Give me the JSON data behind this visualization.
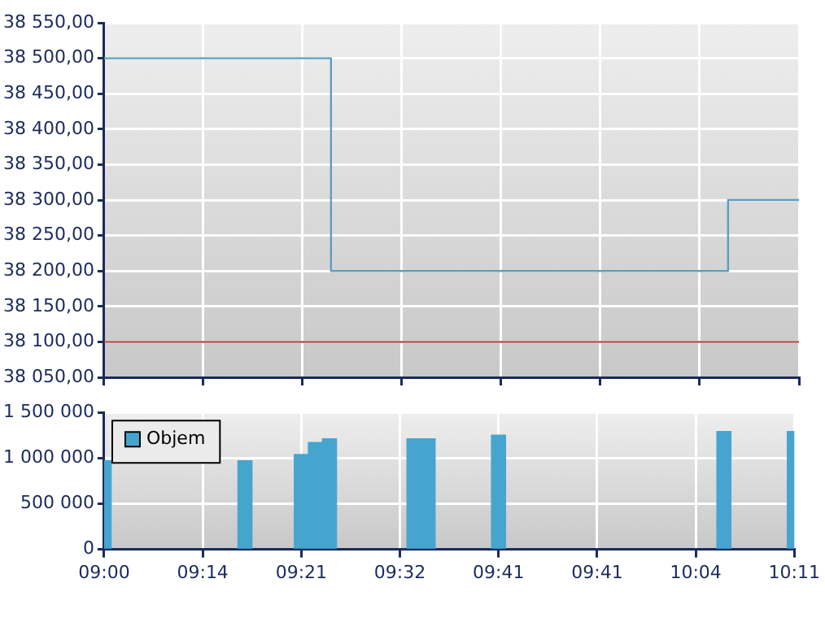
{
  "chart_data": [
    {
      "type": "step",
      "categories": [
        null,
        null,
        null,
        null,
        null,
        null,
        null,
        null,
        null,
        null,
        null,
        null,
        null,
        null,
        null,
        null,
        null,
        null,
        null,
        null,
        null,
        null,
        null,
        null,
        null,
        null,
        null,
        null,
        null,
        null,
        null,
        null,
        null,
        null,
        null,
        null,
        null,
        null,
        null,
        null,
        null,
        null,
        null,
        null,
        null,
        null,
        null,
        null,
        null,
        null
      ],
      "series": [
        {
          "color": "#5a9ec2",
          "values": [
            38500,
            38500,
            38500,
            38500,
            38500,
            38500,
            38500,
            38500,
            38500,
            38500,
            38500,
            38500,
            38500,
            38500,
            38500,
            38500,
            38200,
            38200,
            38200,
            38200,
            38200,
            38200,
            38200,
            38200,
            38200,
            38200,
            38200,
            38200,
            38200,
            38200,
            38200,
            38200,
            38200,
            38200,
            38200,
            38200,
            38200,
            38200,
            38200,
            38200,
            38200,
            38200,
            38200,
            38200,
            38300,
            38300,
            38300,
            38300,
            38300,
            38300
          ]
        }
      ],
      "ylim": [
        38050,
        38550
      ],
      "yticks": [
        {
          "value": 38050,
          "label": "38 050,00"
        },
        {
          "value": 38100,
          "label": "38 100,00"
        },
        {
          "value": 38150,
          "label": "38 150,00"
        },
        {
          "value": 38200,
          "label": "38 200,00"
        },
        {
          "value": 38250,
          "label": "38 250,00"
        },
        {
          "value": 38300,
          "label": "38 300,00"
        },
        {
          "value": 38350,
          "label": "38 350,00"
        },
        {
          "value": 38400,
          "label": "38 400,00"
        },
        {
          "value": 38450,
          "label": "38 450,00"
        },
        {
          "value": 38500,
          "label": "38 500,00"
        },
        {
          "value": 38550,
          "label": "38 550,00"
        }
      ],
      "ref_lines": [
        {
          "axis": "y",
          "value": 38100,
          "color": "#a83434"
        }
      ],
      "grid": true,
      "tick_labels": "y"
    },
    {
      "type": "bar",
      "categories": [
        "09:00",
        null,
        null,
        null,
        null,
        null,
        null,
        "09:14",
        null,
        null,
        null,
        null,
        null,
        null,
        "09:21",
        null,
        null,
        null,
        null,
        null,
        null,
        "09:32",
        null,
        null,
        null,
        null,
        null,
        null,
        "09:41",
        null,
        null,
        null,
        null,
        null,
        null,
        "09:41",
        null,
        null,
        null,
        null,
        null,
        null,
        "10:04",
        null,
        null,
        null,
        null,
        null,
        null,
        "10:11"
      ],
      "series": [
        {
          "name": "Objem",
          "color": "#46a5cf",
          "values": [
            970000,
            null,
            null,
            null,
            null,
            null,
            null,
            null,
            null,
            null,
            970000,
            null,
            null,
            null,
            1040000,
            1170000,
            1210000,
            null,
            null,
            null,
            null,
            null,
            1210000,
            1210000,
            null,
            null,
            null,
            null,
            1250000,
            null,
            null,
            null,
            null,
            null,
            null,
            null,
            null,
            null,
            null,
            null,
            null,
            null,
            null,
            null,
            1290000,
            null,
            null,
            null,
            null,
            1290000
          ]
        }
      ],
      "ylim": [
        0,
        1500000
      ],
      "yticks": [
        {
          "value": 0,
          "label": "0"
        },
        {
          "value": 500000,
          "label": "500 000"
        },
        {
          "value": 1000000,
          "label": "1 000 000"
        },
        {
          "value": 1500000,
          "label": "1 500 000"
        }
      ],
      "grid": true,
      "legend": "top left"
    }
  ]
}
